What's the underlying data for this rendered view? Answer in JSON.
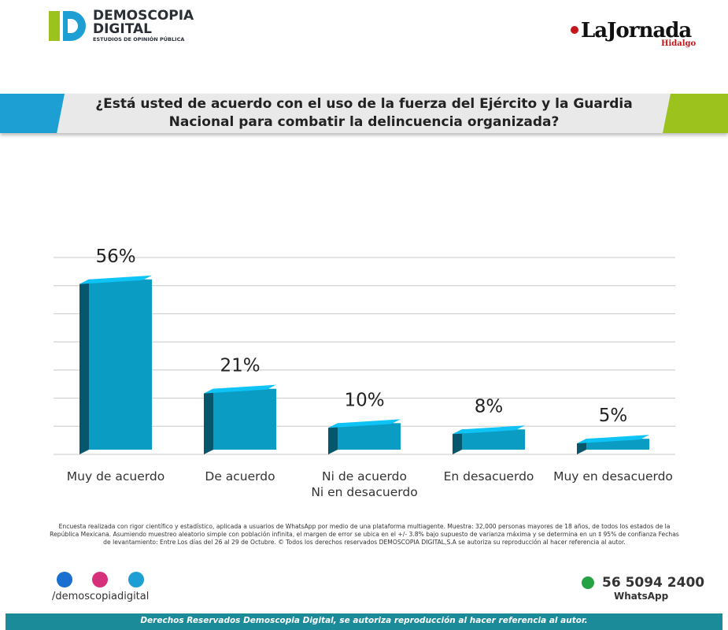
{
  "header": {
    "brand": "DEMOSCOPIA\nDIGITAL",
    "brand_sub": "ESTUDIOS DE OPINIÓN PÚBLICA",
    "partner": "LaJornada",
    "partner_sub": "Hidalgo"
  },
  "chart_data": {
    "type": "bar3d",
    "title": "¿Está usted de acuerdo con el uso de la fuerza del Ejército y la Guardia Nacional para combatir la delincuencia organizada?",
    "categories": [
      "Muy de acuerdo",
      "De acuerdo",
      "Ni de acuerdo\nNi en desacuerdo",
      "En desacuerdo",
      "Muy en desacuerdo"
    ],
    "values": [
      56,
      21,
      10,
      8,
      5
    ],
    "value_labels": [
      "56%",
      "21%",
      "10%",
      "8%",
      "5%"
    ],
    "color": "#0b9cc4",
    "ylim": [
      0,
      63
    ],
    "yticks": [
      0,
      9,
      18,
      27,
      36,
      45,
      54,
      63
    ],
    "grid": true
  },
  "note": "Encuesta realizada con rigor científico y estadístico, aplicada a usuarios de WhatsApp por medio de una plataforma multiagente. Muestra: 32,000 personas mayores de 18 años, de todos los estados de la República Mexicana. Asumiendo muestreo aleatorio simple con población infinita, el margen de error se ubica en el +/- 3.8% bajo supuesto de varianza máxima y se determina en un ‡ 95% de confianza Fechas de levantamiento: Entre Los días del 26 al 29 de Octubre. © Todos los derechos reservados DEMOSCOPIA DIGITAL,S.A se autoriza su reproducción al hacer referencia al autor.",
  "contact": {
    "handle": "/demoscopiadigital",
    "phone": "56 5094 2400",
    "channel": "WhatsApp"
  },
  "footer": "Derechos Reservados Demoscopia Digital, se autoriza reproducción al hacer referencia al autor."
}
